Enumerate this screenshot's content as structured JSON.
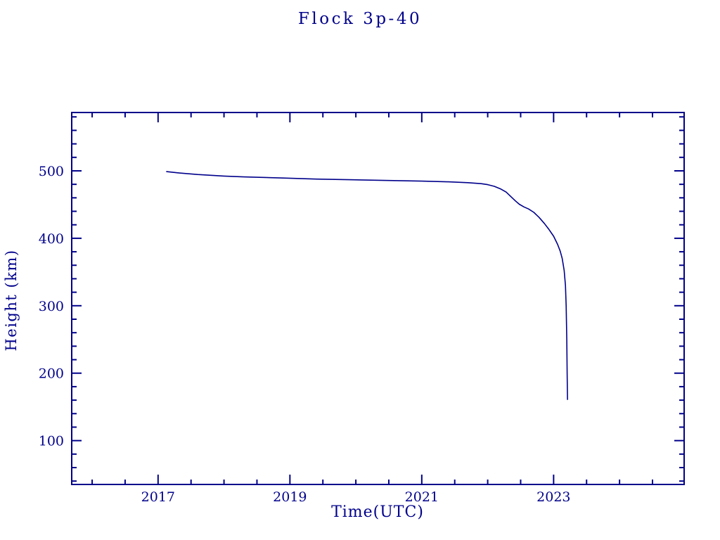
{
  "chart_data": {
    "type": "line",
    "title": "Flock 3p-40",
    "xlabel": "Time(UTC)",
    "ylabel": "Height (km)",
    "xlim": [
      2015.69,
      2024.98
    ],
    "ylim": [
      35,
      586.5
    ],
    "x_major_ticks": [
      2017,
      2019,
      2021,
      2023
    ],
    "x_major_tick_labels": [
      "2017",
      "2019",
      "2021",
      "2023"
    ],
    "x_minor_tick_step": 0.5,
    "y_major_ticks": [
      100,
      200,
      300,
      400,
      500
    ],
    "y_major_tick_labels": [
      "100",
      "200",
      "300",
      "400",
      "500"
    ],
    "y_minor_tick_step": 20,
    "grid": false,
    "legend_position": "none",
    "line_color": "#00008B",
    "axis_color": "#00008B",
    "background_color": "#ffffff",
    "series": [
      {
        "name": "Flock 3p-40 orbital height",
        "points": [
          [
            2017.13,
            498.8
          ],
          [
            2017.3,
            497.0
          ],
          [
            2017.6,
            494.5
          ],
          [
            2018.0,
            492.3
          ],
          [
            2018.3,
            491.0
          ],
          [
            2018.9,
            489.3
          ],
          [
            2019.4,
            487.8
          ],
          [
            2019.9,
            486.8
          ],
          [
            2020.5,
            485.7
          ],
          [
            2021.0,
            484.7
          ],
          [
            2021.4,
            483.7
          ],
          [
            2021.7,
            482.5
          ],
          [
            2021.9,
            481.0
          ],
          [
            2022.0,
            479.5
          ],
          [
            2022.1,
            477.0
          ],
          [
            2022.2,
            473.0
          ],
          [
            2022.28,
            468.5
          ],
          [
            2022.35,
            462.0
          ],
          [
            2022.42,
            455.5
          ],
          [
            2022.48,
            450.5
          ],
          [
            2022.55,
            446.5
          ],
          [
            2022.62,
            443.5
          ],
          [
            2022.7,
            438.5
          ],
          [
            2022.78,
            431.0
          ],
          [
            2022.86,
            422.0
          ],
          [
            2022.93,
            413.0
          ],
          [
            2023.0,
            403.0
          ],
          [
            2023.06,
            391.0
          ],
          [
            2023.1,
            381.0
          ],
          [
            2023.13,
            370.0
          ],
          [
            2023.16,
            352.0
          ],
          [
            2023.18,
            330.0
          ],
          [
            2023.19,
            300.0
          ],
          [
            2023.2,
            250.0
          ],
          [
            2023.205,
            200.0
          ],
          [
            2023.21,
            161.0
          ]
        ]
      }
    ]
  }
}
